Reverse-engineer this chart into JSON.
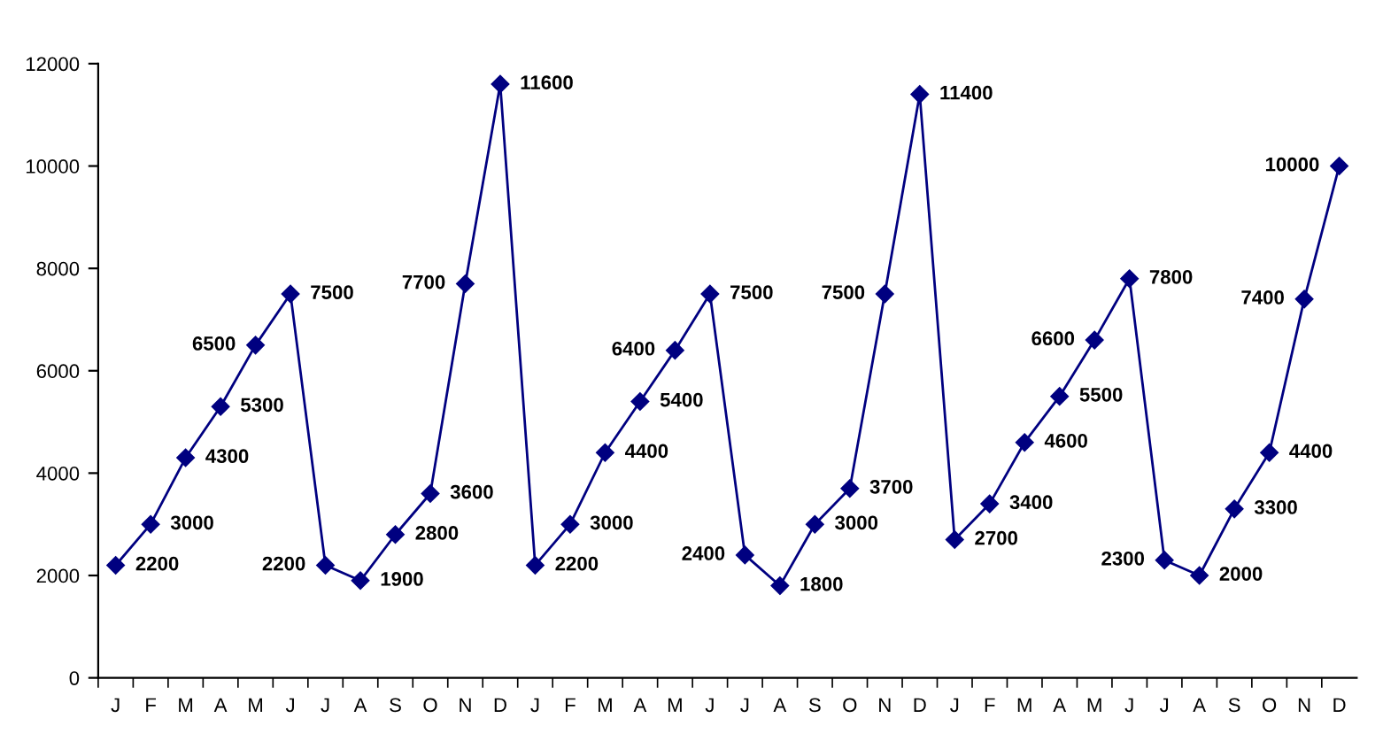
{
  "chart_data": {
    "type": "line",
    "categories": [
      "J",
      "F",
      "M",
      "A",
      "M",
      "J",
      "J",
      "A",
      "S",
      "O",
      "N",
      "D",
      "J",
      "F",
      "M",
      "A",
      "M",
      "J",
      "J",
      "A",
      "S",
      "O",
      "N",
      "D",
      "J",
      "F",
      "M",
      "A",
      "M",
      "J",
      "J",
      "A",
      "S",
      "O",
      "N",
      "D"
    ],
    "series": [
      {
        "color": "#000080",
        "values": [
          2200,
          3000,
          4300,
          5300,
          6500,
          7500,
          2200,
          1900,
          2800,
          3600,
          7700,
          11600,
          2200,
          3000,
          4400,
          5400,
          6400,
          7500,
          2400,
          1800,
          3000,
          3700,
          7500,
          11400,
          2700,
          3400,
          4600,
          5500,
          6600,
          7800,
          2300,
          2000,
          3300,
          4400,
          7400,
          10000
        ]
      }
    ],
    "ylim": [
      0,
      12000
    ],
    "yticks": [
      0,
      2000,
      4000,
      6000,
      8000,
      10000,
      12000
    ],
    "marker": "diamond",
    "line_style": "solid",
    "data_labels": true,
    "grid": false,
    "legend": false
  }
}
